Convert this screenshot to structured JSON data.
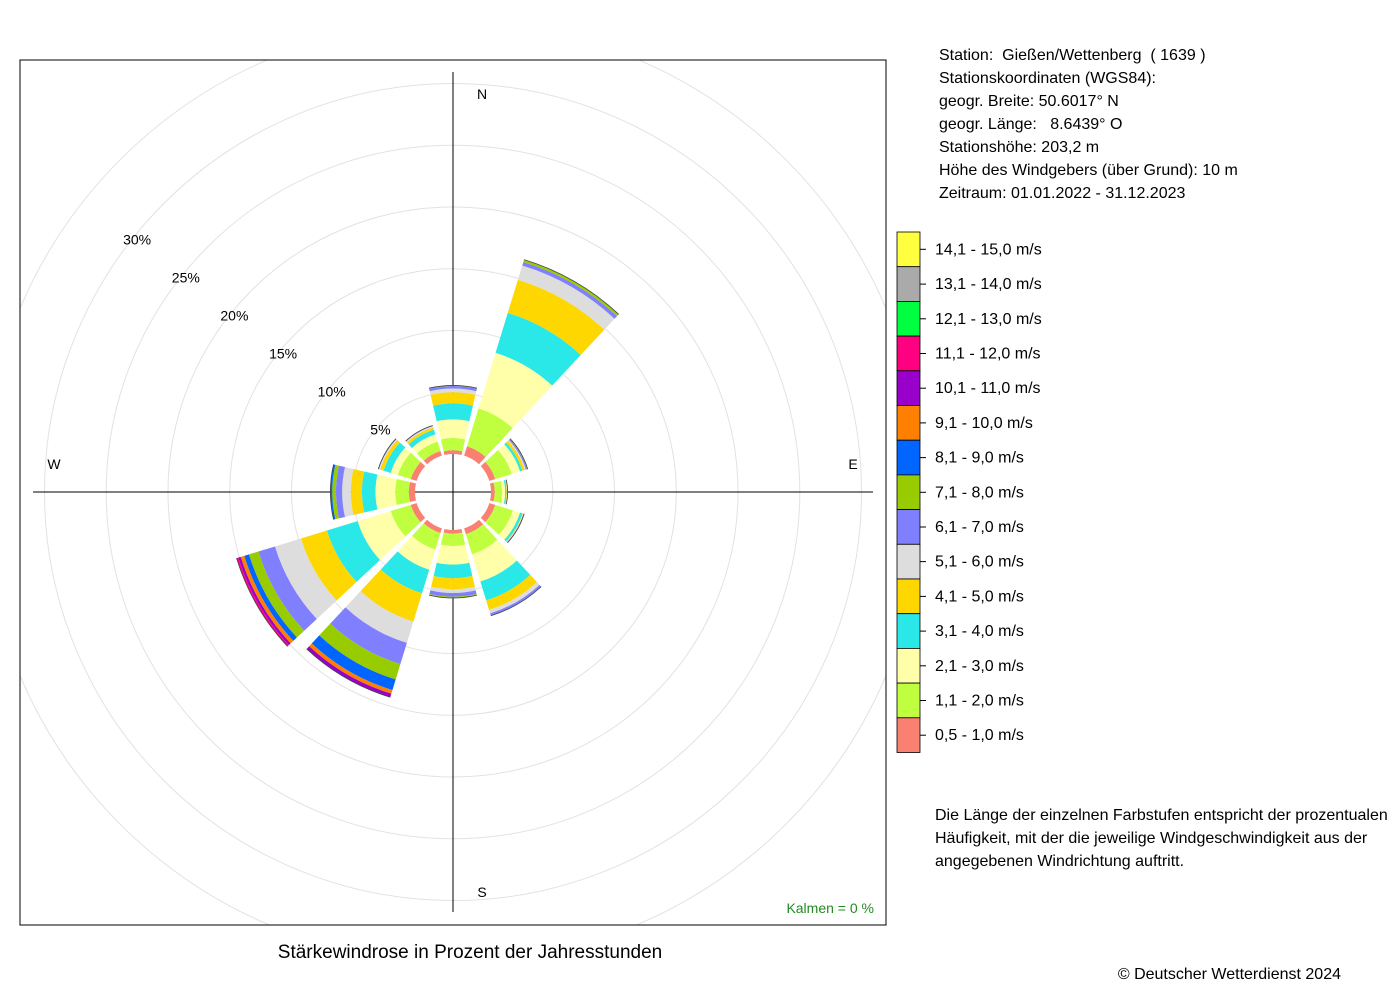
{
  "chart_data": {
    "type": "wind-rose",
    "title": "Stärkewindrose in Prozent der Jahresstunden",
    "radial_unit": "%",
    "radial_ticks": [
      5,
      10,
      15,
      20,
      25,
      30
    ],
    "radial_tick_labels": [
      "5%",
      "10%",
      "15%",
      "20%",
      "25%",
      "30%"
    ],
    "direction_labels": [
      "N",
      "E",
      "S",
      "W"
    ],
    "sector_width_deg": 30,
    "calm_label": "Kalmen  =  0 %",
    "speed_classes": [
      {
        "label": "0,5 - 1,0 m/s",
        "color": "#fa8072"
      },
      {
        "label": "1,1 - 2,0 m/s",
        "color": "#bfff3f"
      },
      {
        "label": "2,1 - 3,0 m/s",
        "color": "#ffffaa"
      },
      {
        "label": "3,1 - 4,0 m/s",
        "color": "#2ae8e8"
      },
      {
        "label": "4,1 - 5,0 m/s",
        "color": "#ffd700"
      },
      {
        "label": "5,1 - 6,0 m/s",
        "color": "#dddddd"
      },
      {
        "label": "6,1 - 7,0 m/s",
        "color": "#8080ff"
      },
      {
        "label": "7,1 - 8,0 m/s",
        "color": "#99cc00"
      },
      {
        "label": "8,1 - 9,0 m/s",
        "color": "#0066ff"
      },
      {
        "label": "9,1 - 10,0 m/s",
        "color": "#ff8000"
      },
      {
        "label": "10,1 - 11,0 m/s",
        "color": "#9900cc"
      },
      {
        "label": "11,1 - 12,0 m/s",
        "color": "#ff0080"
      },
      {
        "label": "12,1 - 13,0 m/s",
        "color": "#00ff40"
      },
      {
        "label": "13,1 - 14,0 m/s",
        "color": "#aaaaaa"
      },
      {
        "label": "14,1 - 15,0 m/s",
        "color": "#ffff40"
      }
    ],
    "sectors": [
      {
        "direction_deg": 0,
        "values": [
          0.3,
          1.0,
          1.5,
          1.3,
          0.9,
          0.3,
          0.2,
          0.05
        ]
      },
      {
        "direction_deg": 30,
        "values": [
          0.8,
          3.2,
          4.7,
          3.4,
          2.8,
          1.2,
          0.3,
          0.2
        ]
      },
      {
        "direction_deg": 60,
        "values": [
          0.5,
          1.4,
          0.7,
          0.2,
          0.2,
          0.1,
          0.1,
          0.05
        ]
      },
      {
        "direction_deg": 90,
        "values": [
          0.3,
          0.6,
          0.25,
          0.1,
          0.05,
          0.05
        ]
      },
      {
        "direction_deg": 120,
        "values": [
          0.5,
          1.5,
          0.6,
          0.2,
          0.05,
          0.05,
          0.05
        ]
      },
      {
        "direction_deg": 150,
        "values": [
          0.5,
          1.7,
          2.3,
          1.6,
          0.8,
          0.3,
          0.2
        ]
      },
      {
        "direction_deg": 180,
        "values": [
          0.3,
          1.0,
          1.5,
          1.1,
          0.9,
          0.3,
          0.3,
          0.1
        ]
      },
      {
        "direction_deg": 210,
        "values": [
          0.4,
          1.4,
          1.7,
          2.0,
          2.4,
          1.8,
          1.8,
          1.3,
          0.9,
          0.3,
          0.3
        ]
      },
      {
        "direction_deg": 240,
        "values": [
          0.5,
          1.7,
          2.8,
          2.6,
          2.2,
          2.2,
          1.4,
          0.8,
          0.4,
          0.3,
          0.2,
          0.15
        ]
      },
      {
        "direction_deg": 270,
        "values": [
          0.5,
          1.1,
          1.6,
          1.1,
          0.9,
          0.7,
          0.5,
          0.3,
          0.15
        ]
      },
      {
        "direction_deg": 300,
        "values": [
          0.5,
          1.1,
          0.6,
          0.6,
          0.3,
          0.1,
          0.05
        ]
      },
      {
        "direction_deg": 330,
        "values": [
          0.4,
          0.8,
          0.6,
          0.4,
          0.2,
          0.1,
          0.05
        ]
      }
    ]
  },
  "station_info": [
    "Station:  Gießen/Wettenberg  ( 1639 )",
    "Stationskoordinaten (WGS84):",
    "geogr. Breite: 50.6017° N",
    "geogr. Länge:   8.6439° O",
    "Stationshöhe: 203,2 m",
    "Höhe des Windgebers (über Grund): 10 m",
    "Zeitraum: 01.01.2022 - 31.12.2023"
  ],
  "note_lines": [
    "Die Länge der einzelnen Farbstufen entspricht der prozentualen",
    "Häufigkeit, mit der die jeweilige Windgeschwindigkeit aus der",
    "angegebenen Windrichtung auftritt."
  ],
  "copyright": "© Deutscher Wetterdienst  2024"
}
